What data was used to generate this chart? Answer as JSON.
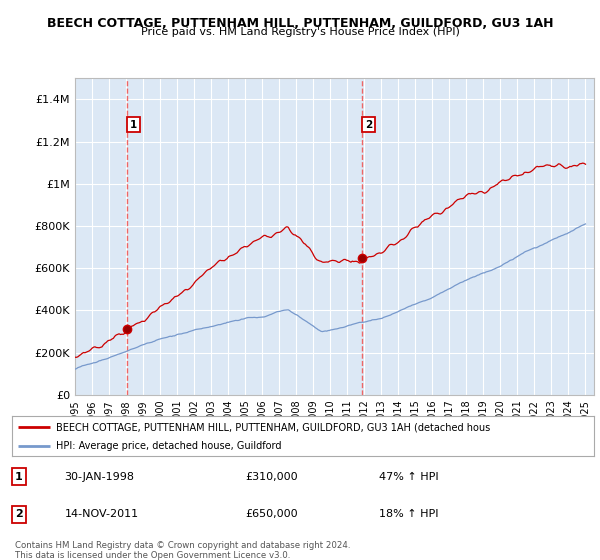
{
  "title1": "BEECH COTTAGE, PUTTENHAM HILL, PUTTENHAM, GUILDFORD, GU3 1AH",
  "title2": "Price paid vs. HM Land Registry's House Price Index (HPI)",
  "plot_bg_color": "#dce8f5",
  "ylim": [
    0,
    1500000
  ],
  "yticks": [
    0,
    200000,
    400000,
    600000,
    800000,
    1000000,
    1200000,
    1400000
  ],
  "ytick_labels": [
    "£0",
    "£200K",
    "£400K",
    "£600K",
    "£800K",
    "£1M",
    "£1.2M",
    "£1.4M"
  ],
  "sale1_date": 1998.08,
  "sale1_price": 310000,
  "sale1_label": "1",
  "sale2_date": 2011.88,
  "sale2_price": 650000,
  "sale2_label": "2",
  "legend_line1": "BEECH COTTAGE, PUTTENHAM HILL, PUTTENHAM, GUILDFORD, GU3 1AH (detached hous",
  "legend_line2": "HPI: Average price, detached house, Guildford",
  "table_row1": [
    "1",
    "30-JAN-1998",
    "£310,000",
    "47% ↑ HPI"
  ],
  "table_row2": [
    "2",
    "14-NOV-2011",
    "£650,000",
    "18% ↑ HPI"
  ],
  "footer": "Contains HM Land Registry data © Crown copyright and database right 2024.\nThis data is licensed under the Open Government Licence v3.0.",
  "hpi_color": "#7799cc",
  "price_color": "#cc0000",
  "dashed_color": "#ee6666",
  "xstart": 1995,
  "xend": 2025
}
